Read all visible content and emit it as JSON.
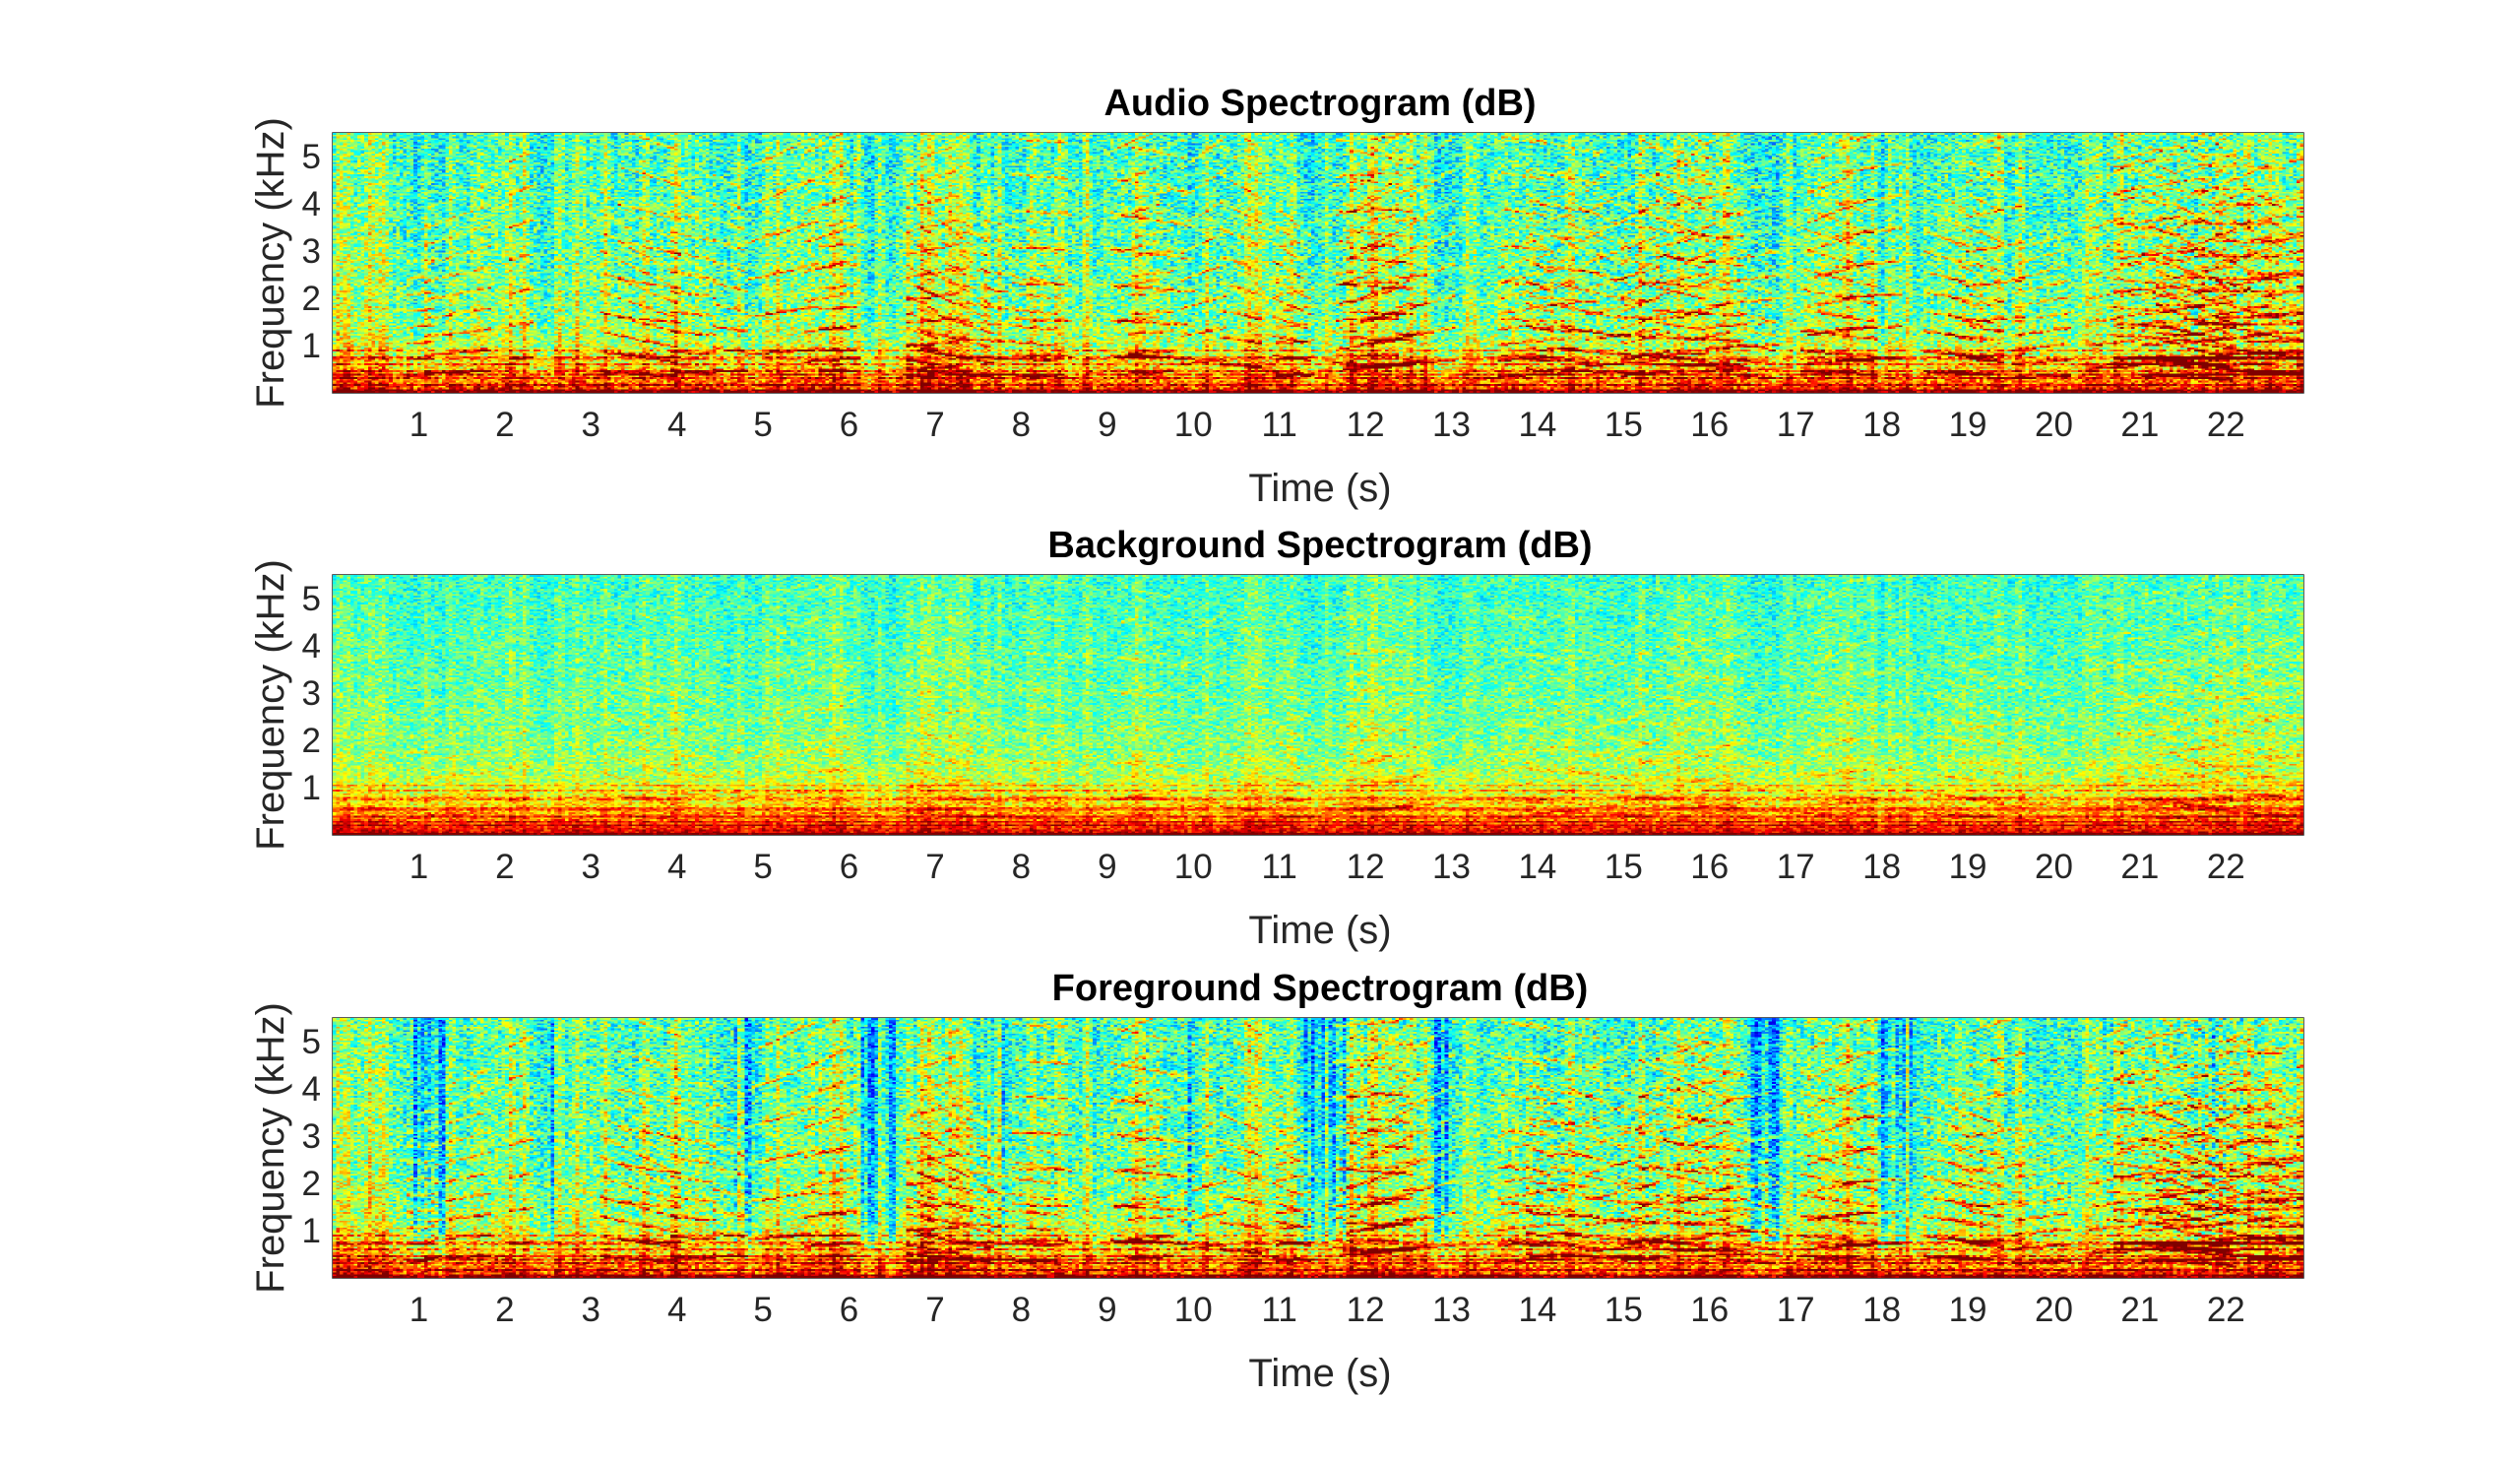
{
  "chart_data": [
    {
      "type": "heatmap",
      "title": "Audio Spectrogram (dB)",
      "xlabel": "Time (s)",
      "ylabel": "Frequency (kHz)",
      "xlim": [
        0,
        22.9
      ],
      "ylim": [
        0,
        5.5
      ],
      "xticks": [
        "1",
        "2",
        "3",
        "4",
        "5",
        "6",
        "7",
        "8",
        "9",
        "10",
        "11",
        "12",
        "13",
        "14",
        "15",
        "16",
        "17",
        "18",
        "19",
        "20",
        "21",
        "22"
      ],
      "yticks": [
        "1",
        "2",
        "3",
        "4",
        "5"
      ],
      "colormap": "jet",
      "content": "foreground"
    },
    {
      "type": "heatmap",
      "title": "Background Spectrogram (dB)",
      "xlabel": "Time (s)",
      "ylabel": "Frequency (kHz)",
      "xlim": [
        0,
        22.9
      ],
      "ylim": [
        0,
        5.5
      ],
      "xticks": [
        "1",
        "2",
        "3",
        "4",
        "5",
        "6",
        "7",
        "8",
        "9",
        "10",
        "11",
        "12",
        "13",
        "14",
        "15",
        "16",
        "17",
        "18",
        "19",
        "20",
        "21",
        "22"
      ],
      "yticks": [
        "1",
        "2",
        "3",
        "4",
        "5"
      ],
      "colormap": "jet",
      "content": "background"
    },
    {
      "type": "heatmap",
      "title": "Foreground Spectrogram (dB)",
      "xlabel": "Time (s)",
      "ylabel": "Frequency (kHz)",
      "xlim": [
        0,
        22.9
      ],
      "ylim": [
        0,
        5.5
      ],
      "xticks": [
        "1",
        "2",
        "3",
        "4",
        "5",
        "6",
        "7",
        "8",
        "9",
        "10",
        "11",
        "12",
        "13",
        "14",
        "15",
        "16",
        "17",
        "18",
        "19",
        "20",
        "21",
        "22"
      ],
      "yticks": [
        "1",
        "2",
        "3",
        "4",
        "5"
      ],
      "colormap": "jet",
      "content": "foreground"
    }
  ],
  "colors": {
    "axis": "#262626",
    "title": "#000000"
  }
}
